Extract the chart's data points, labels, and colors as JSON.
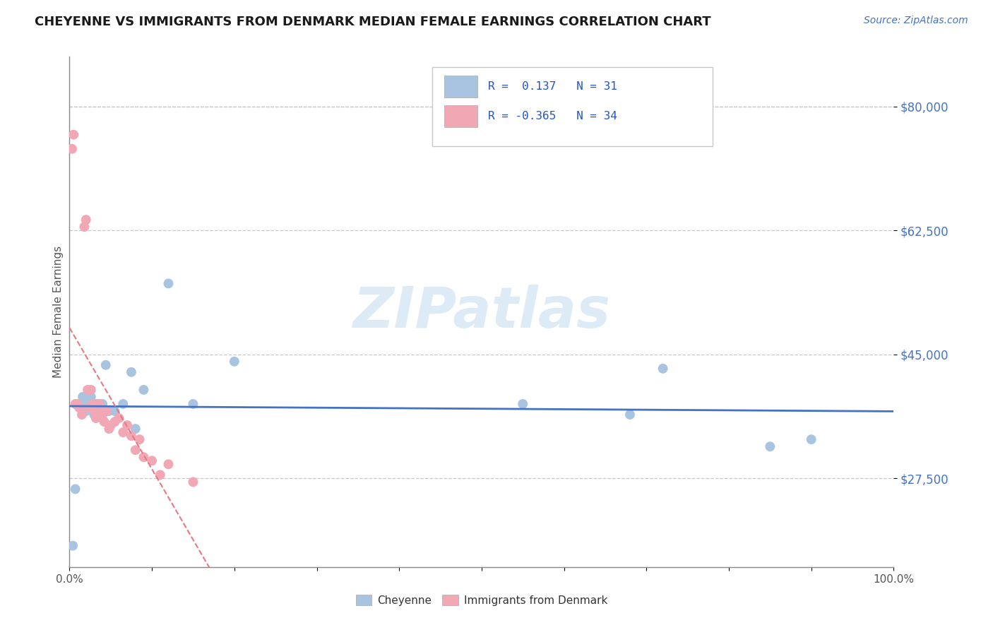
{
  "title": "CHEYENNE VS IMMIGRANTS FROM DENMARK MEDIAN FEMALE EARNINGS CORRELATION CHART",
  "source": "Source: ZipAtlas.com",
  "ylabel": "Median Female Earnings",
  "xlim": [
    0,
    1.0
  ],
  "ylim": [
    15000,
    87000
  ],
  "xtick_positions": [
    0.0,
    0.1,
    0.2,
    0.3,
    0.4,
    0.5,
    0.6,
    0.7,
    0.8,
    0.9,
    1.0
  ],
  "xtick_labels_map": {
    "0.0": "0.0%",
    "1.0": "100.0%"
  },
  "ytick_values": [
    27500,
    45000,
    62500,
    80000
  ],
  "ytick_labels": [
    "$27,500",
    "$45,000",
    "$62,500",
    "$80,000"
  ],
  "background_color": "#ffffff",
  "watermark_text": "ZIPatlas",
  "cheyenne_color": "#a8c4e0",
  "denmark_color": "#f2a8b4",
  "cheyenne_line_color": "#4472c4",
  "denmark_line_color": "#e87880",
  "grid_color": "#c8c8c8",
  "title_color": "#1a1a1a",
  "source_color": "#4472c4",
  "cheyenne_x": [
    0.004,
    0.007,
    0.012,
    0.014,
    0.016,
    0.018,
    0.02,
    0.022,
    0.024,
    0.026,
    0.028,
    0.03,
    0.032,
    0.034,
    0.036,
    0.04,
    0.044,
    0.048,
    0.055,
    0.065,
    0.075,
    0.08,
    0.09,
    0.12,
    0.15,
    0.2,
    0.55,
    0.68,
    0.72,
    0.85,
    0.9
  ],
  "cheyenne_y": [
    18000,
    26000,
    37500,
    38000,
    39000,
    38000,
    37000,
    37500,
    38500,
    39000,
    37000,
    36500,
    38000,
    37000,
    38000,
    38000,
    43500,
    37000,
    37000,
    38000,
    42500,
    34500,
    40000,
    55000,
    38000,
    44000,
    38000,
    36500,
    43000,
    32000,
    33000
  ],
  "denmark_x": [
    0.003,
    0.005,
    0.007,
    0.01,
    0.012,
    0.015,
    0.018,
    0.02,
    0.022,
    0.024,
    0.026,
    0.028,
    0.03,
    0.032,
    0.034,
    0.036,
    0.038,
    0.04,
    0.042,
    0.045,
    0.048,
    0.05,
    0.055,
    0.06,
    0.065,
    0.07,
    0.075,
    0.08,
    0.085,
    0.09,
    0.1,
    0.11,
    0.12,
    0.15
  ],
  "denmark_y": [
    74000,
    76000,
    38000,
    38000,
    37500,
    36500,
    63000,
    64000,
    40000,
    37500,
    40000,
    38000,
    37000,
    36000,
    36500,
    38000,
    37500,
    36500,
    35500,
    37000,
    34500,
    35000,
    35500,
    36000,
    34000,
    35000,
    33500,
    31500,
    33000,
    30500,
    30000,
    28000,
    29500,
    27000
  ],
  "cheyenne_trendline_x": [
    0.0,
    1.0
  ],
  "cheyenne_trendline_y": [
    36500,
    38500
  ],
  "denmark_trendline_x0": 0.003,
  "denmark_trendline_x1": 0.17
}
